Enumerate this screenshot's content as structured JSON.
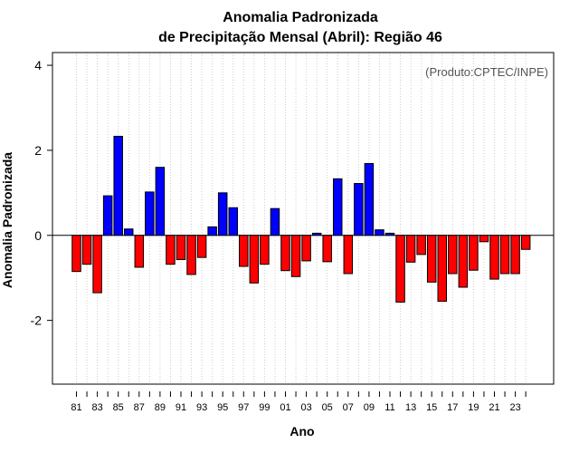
{
  "chart_data": {
    "type": "bar",
    "title_line1": "Anomalia Padronizada",
    "title_line2": "de Precipitação Mensal (Abril): Região 46",
    "xlabel": "Ano",
    "ylabel": "Anomalia Padronizada",
    "annotation": "(Produto:CPTEC/INPE)",
    "ylim": [
      -3.5,
      4.3
    ],
    "yticks": [
      -2,
      0,
      2,
      4
    ],
    "ytick_labels": [
      "-2",
      "0",
      "2",
      "4"
    ],
    "x_tick_labels": [
      "81",
      "83",
      "85",
      "87",
      "89",
      "91",
      "93",
      "95",
      "97",
      "99",
      "01",
      "03",
      "05",
      "07",
      "09",
      "11",
      "13",
      "15",
      "17",
      "19",
      "21",
      "23"
    ],
    "categories": [
      "81",
      "82",
      "83",
      "84",
      "85",
      "86",
      "87",
      "88",
      "89",
      "90",
      "91",
      "92",
      "93",
      "94",
      "95",
      "96",
      "97",
      "98",
      "99",
      "00",
      "01",
      "02",
      "03",
      "04",
      "05",
      "06",
      "07",
      "08",
      "09",
      "10",
      "11",
      "12",
      "13",
      "14",
      "15",
      "16",
      "17",
      "18",
      "19",
      "20",
      "21",
      "22",
      "23",
      "24"
    ],
    "values": [
      -0.85,
      -0.68,
      -1.35,
      0.93,
      2.33,
      0.15,
      -0.75,
      1.02,
      1.6,
      -0.68,
      -0.57,
      -0.92,
      -0.52,
      0.2,
      1.0,
      0.65,
      -0.73,
      -1.12,
      -0.68,
      0.63,
      -0.83,
      -0.97,
      -0.6,
      0.05,
      -0.62,
      1.33,
      -0.9,
      1.22,
      1.69,
      0.13,
      0.05,
      -1.57,
      -0.63,
      -0.45,
      -1.1,
      -1.55,
      -0.9,
      -1.22,
      -0.82,
      -0.15,
      -1.03,
      -0.9,
      -0.9,
      -0.33
    ],
    "positive_color": "#0000ff",
    "negative_color": "#ff0000",
    "grid": true
  }
}
